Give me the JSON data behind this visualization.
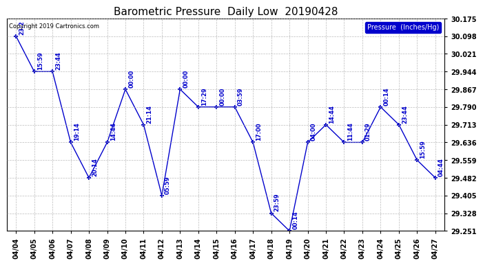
{
  "title": "Barometric Pressure  Daily Low  20190428",
  "copyright": "Copyright 2019 Cartronics.com",
  "legend_label": "Pressure  (Inches/Hg)",
  "dates": [
    "04/04",
    "04/05",
    "04/06",
    "04/07",
    "04/08",
    "04/09",
    "04/10",
    "04/11",
    "04/12",
    "04/13",
    "04/14",
    "04/15",
    "04/16",
    "04/17",
    "04/18",
    "04/19",
    "04/20",
    "04/21",
    "04/22",
    "04/23",
    "04/24",
    "04/25",
    "04/26",
    "04/27"
  ],
  "values": [
    30.098,
    29.944,
    29.944,
    29.636,
    29.482,
    29.636,
    29.867,
    29.713,
    29.405,
    29.867,
    29.79,
    29.79,
    29.79,
    29.636,
    29.328,
    29.251,
    29.636,
    29.713,
    29.636,
    29.636,
    29.79,
    29.713,
    29.559,
    29.482
  ],
  "time_labels": [
    "23:2",
    "15:59",
    "23:44",
    "19:14",
    "20:14",
    "14:44",
    "00:00",
    "21:14",
    "05:59",
    "00:00",
    "17:29",
    "00:00",
    "03:59",
    "17:00",
    "23:59",
    "00:14",
    "04:00",
    "14:44",
    "11:44",
    "01:29",
    "00:14",
    "23:44",
    "15:59",
    "04:44"
  ],
  "ylim": [
    29.251,
    30.175
  ],
  "yticks": [
    29.251,
    29.328,
    29.405,
    29.482,
    29.559,
    29.636,
    29.713,
    29.79,
    29.867,
    29.944,
    30.021,
    30.098,
    30.175
  ],
  "line_color": "#0000cc",
  "marker_color": "#0000cc",
  "grid_color": "#aaaaaa",
  "bg_color": "#ffffff",
  "title_fontsize": 11,
  "legend_bg": "#0000cc",
  "legend_fg": "#ffffff",
  "figwidth": 6.9,
  "figheight": 3.75,
  "dpi": 100
}
